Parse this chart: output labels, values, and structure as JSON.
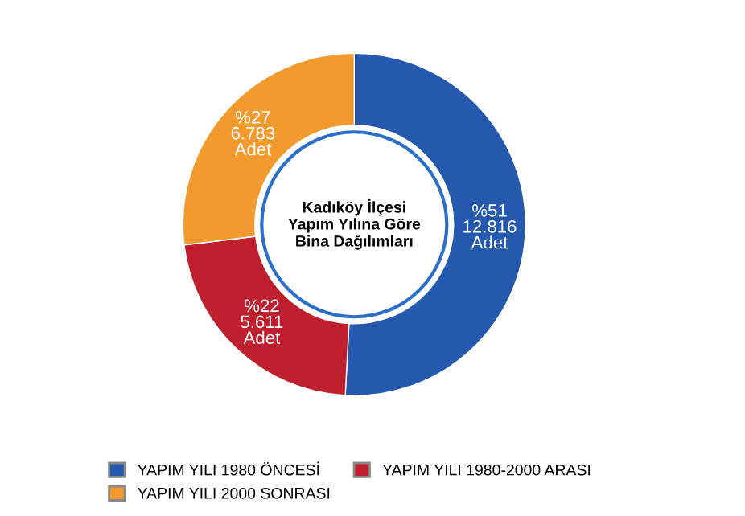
{
  "chart_data": {
    "type": "donut",
    "title": "Kadıköy İlçesi\nYapım Yılına Göre\nBina Dağılımları",
    "categories": [
      "YAPIM YILI 1980 ÖNCESİ",
      "YAPIM YILI 1980-2000 ARASI",
      "YAPIM YILI 2000 SONRASI"
    ],
    "values": [
      12816,
      5611,
      6783
    ],
    "value_labels": [
      "%51\n12.816\nAdet",
      "%22\n5.611\nAdet",
      "%27\n6.783\nAdet"
    ],
    "colors": [
      "#2559ad",
      "#c0202e",
      "#f29a2e"
    ],
    "legend": "bottom"
  }
}
